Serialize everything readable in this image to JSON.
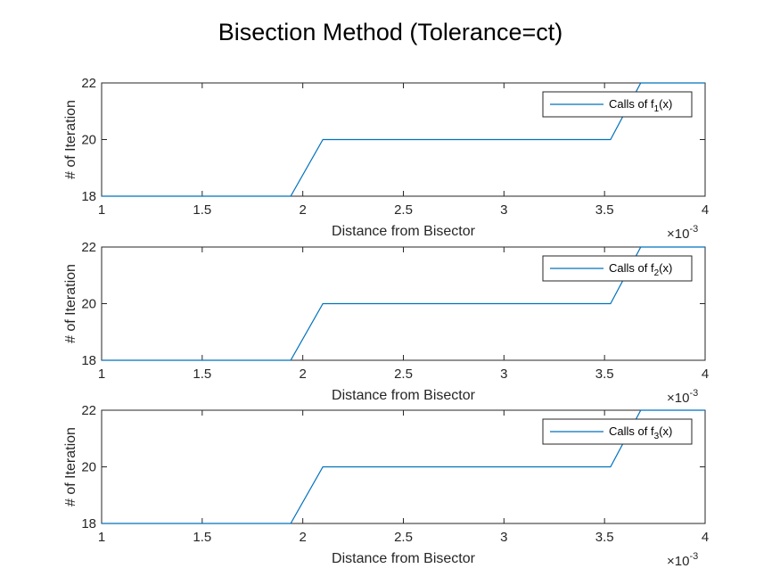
{
  "figure": {
    "title": "Bisection Method (Tolerance=ct)"
  },
  "chart_data": [
    {
      "type": "line",
      "xlabel": "Distance from Bisector",
      "ylabel": "# of Iteration",
      "xlim": [
        0.001,
        0.004
      ],
      "ylim": [
        18,
        22
      ],
      "x_tick_labels": [
        "1",
        "1.5",
        "2",
        "2.5",
        "3",
        "3.5",
        "4"
      ],
      "x_multiplier_base": "×10",
      "x_multiplier_exp": "-3",
      "y_tick_labels": [
        "18",
        "20",
        "22"
      ],
      "grid": false,
      "legend": "top-right",
      "series": [
        {
          "legend_prefix": "Calls of f",
          "legend_sub": "1",
          "legend_suffix": "(x)",
          "color": "#0072BD",
          "x": [
            0.001,
            0.00194,
            0.0021,
            0.00353,
            0.00368,
            0.004
          ],
          "y": [
            18,
            18,
            20,
            20,
            22,
            22
          ]
        }
      ]
    },
    {
      "type": "line",
      "xlabel": "Distance from Bisector",
      "ylabel": "# of Iteration",
      "xlim": [
        0.001,
        0.004
      ],
      "ylim": [
        18,
        22
      ],
      "x_tick_labels": [
        "1",
        "1.5",
        "2",
        "2.5",
        "3",
        "3.5",
        "4"
      ],
      "x_multiplier_base": "×10",
      "x_multiplier_exp": "-3",
      "y_tick_labels": [
        "18",
        "20",
        "22"
      ],
      "grid": false,
      "legend": "top-right",
      "series": [
        {
          "legend_prefix": "Calls of f",
          "legend_sub": "2",
          "legend_suffix": "(x)",
          "color": "#0072BD",
          "x": [
            0.001,
            0.00194,
            0.0021,
            0.00353,
            0.00368,
            0.004
          ],
          "y": [
            18,
            18,
            20,
            20,
            22,
            22
          ]
        }
      ]
    },
    {
      "type": "line",
      "xlabel": "Distance from Bisector",
      "ylabel": "# of Iteration",
      "xlim": [
        0.001,
        0.004
      ],
      "ylim": [
        18,
        22
      ],
      "x_tick_labels": [
        "1",
        "1.5",
        "2",
        "2.5",
        "3",
        "3.5",
        "4"
      ],
      "x_multiplier_base": "×10",
      "x_multiplier_exp": "-3",
      "y_tick_labels": [
        "18",
        "20",
        "22"
      ],
      "grid": false,
      "legend": "top-right",
      "series": [
        {
          "legend_prefix": "Calls of f",
          "legend_sub": "3",
          "legend_suffix": "(x)",
          "color": "#0072BD",
          "x": [
            0.001,
            0.00194,
            0.0021,
            0.00353,
            0.00368,
            0.004
          ],
          "y": [
            18,
            18,
            20,
            20,
            22,
            22
          ]
        }
      ]
    }
  ]
}
